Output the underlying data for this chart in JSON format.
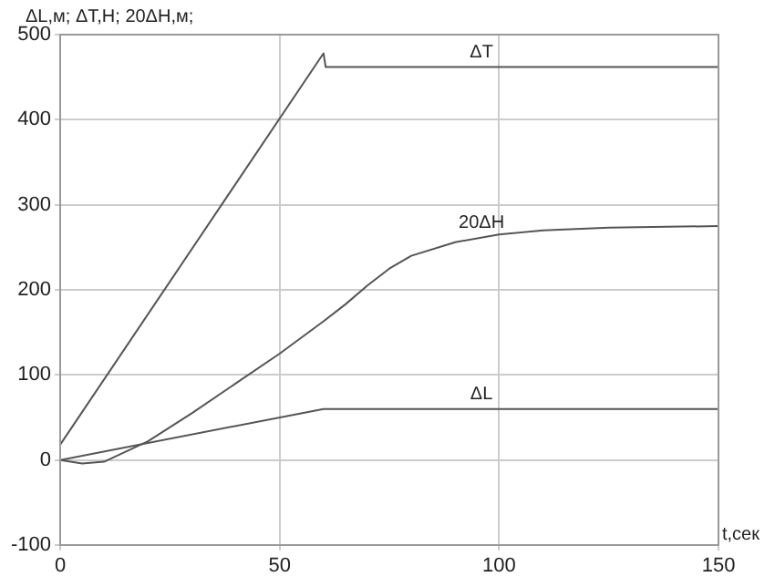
{
  "chart_data": {
    "type": "line",
    "ylabel": "ΔL,м; ΔT,Н; 20ΔН,м;",
    "xlabel": "t,сек",
    "xlim": [
      0,
      150
    ],
    "xticks": [
      0,
      50,
      100,
      150
    ],
    "ylim": [
      -100,
      500
    ],
    "yticks": [
      -100,
      0,
      100,
      200,
      300,
      400,
      500
    ],
    "grid": true,
    "legend": false,
    "marker": "none",
    "line_style": "solid",
    "series": [
      {
        "name": "ΔT",
        "color": "#555555",
        "x": [
          0,
          60,
          60.5,
          150
        ],
        "values": [
          18,
          478,
          462,
          462
        ]
      },
      {
        "name": "20ΔН",
        "color": "#555555",
        "x": [
          0,
          5,
          10,
          15,
          20,
          30,
          40,
          50,
          60,
          65,
          70,
          75,
          80,
          90,
          100,
          110,
          125,
          150
        ],
        "values": [
          0,
          -4,
          -2,
          10,
          22,
          55,
          90,
          125,
          163,
          183,
          205,
          225,
          240,
          256,
          265,
          270,
          273,
          275
        ]
      },
      {
        "name": "ΔL",
        "color": "#555555",
        "x": [
          0,
          60,
          150
        ],
        "values": [
          0,
          60,
          60
        ]
      }
    ]
  }
}
